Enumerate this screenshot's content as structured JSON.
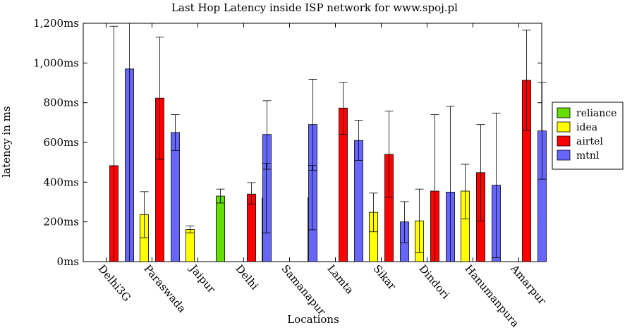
{
  "chart_data": {
    "type": "bar",
    "title": "Last Hop Latency inside ISP network for www.spoj.pl",
    "xlabel": "Locations",
    "ylabel": "latency in ms",
    "ylim": [
      0,
      1200
    ],
    "y_ticks": [
      0,
      200,
      400,
      600,
      800,
      1000,
      1200
    ],
    "y_tick_labels": [
      "0ms",
      "200ms",
      "400ms",
      "600ms",
      "800ms",
      "1,000ms",
      "1,200ms"
    ],
    "categories": [
      "Delhi3G",
      "Paraswada",
      "Jaipur",
      "Delhi",
      "Samanapur",
      "Lamta",
      "Sikar",
      "Dindori",
      "Hanumanpura",
      "Amarpur"
    ],
    "legend_position": "right",
    "grid": false,
    "series": [
      {
        "name": "reliance",
        "color": "#66dd00",
        "values": [
          null,
          null,
          null,
          330,
          320,
          322,
          null,
          null,
          null,
          null
        ],
        "err_low": [
          null,
          null,
          null,
          295,
          145,
          160,
          null,
          null,
          null,
          null
        ],
        "err_high": [
          null,
          null,
          null,
          365,
          495,
          485,
          null,
          null,
          null,
          null
        ]
      },
      {
        "name": "idea",
        "color": "#ffff00",
        "values": [
          null,
          237,
          162,
          null,
          null,
          null,
          248,
          205,
          355,
          null
        ],
        "err_low": [
          null,
          120,
          145,
          null,
          null,
          null,
          150,
          45,
          215,
          null
        ],
        "err_high": [
          null,
          352,
          180,
          null,
          null,
          null,
          345,
          365,
          490,
          null
        ]
      },
      {
        "name": "airtel",
        "color": "#ff0000",
        "values": [
          483,
          823,
          null,
          340,
          null,
          773,
          540,
          355,
          448,
          913
        ],
        "err_low": [
          0,
          515,
          null,
          290,
          null,
          640,
          325,
          0,
          205,
          660
        ],
        "err_high": [
          1185,
          1130,
          null,
          398,
          null,
          902,
          758,
          740,
          690,
          1165
        ]
      },
      {
        "name": "mtnl",
        "color": "#6666ff",
        "values": [
          970,
          650,
          null,
          640,
          690,
          610,
          200,
          350,
          385,
          658
        ],
        "err_low": [
          0,
          560,
          null,
          465,
          460,
          510,
          95,
          0,
          20,
          415
        ],
        "err_high": [
          1200,
          740,
          null,
          810,
          918,
          712,
          302,
          783,
          748,
          902
        ]
      }
    ]
  }
}
